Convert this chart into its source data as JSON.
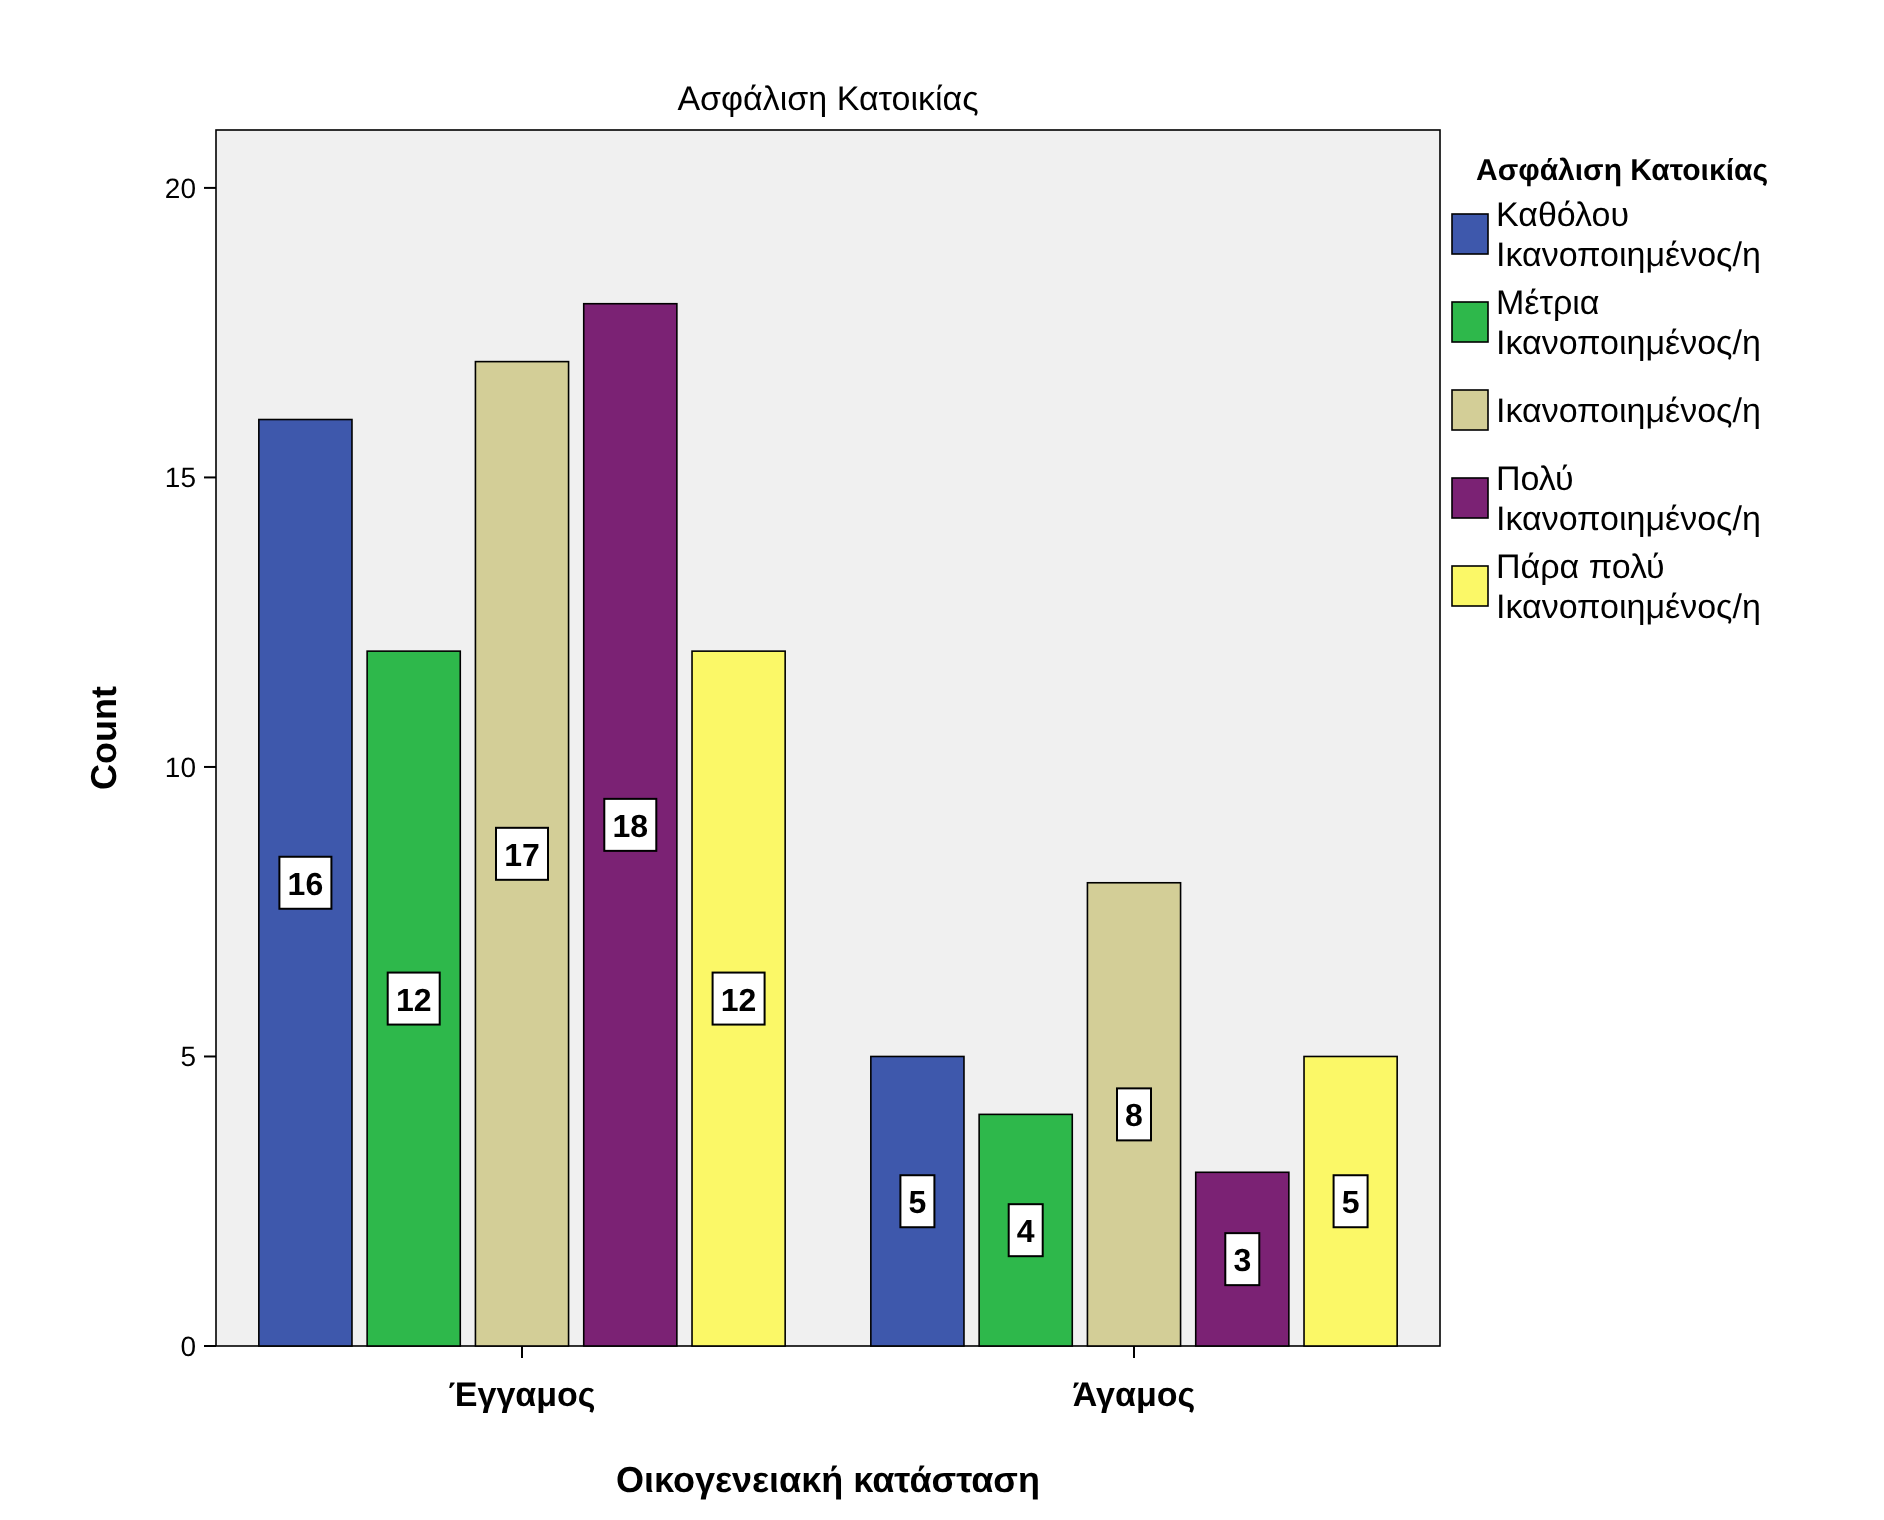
{
  "chart_data": {
    "type": "bar",
    "title": "Ασφάλιση Κατοικίας",
    "xlabel": "Οικογενειακή κατάσταση",
    "ylabel": "Count",
    "legend_title": "Ασφάλιση Κατοικίας",
    "legend": "right",
    "categories": [
      "Έγγαμος",
      "Άγαμος"
    ],
    "series": [
      {
        "name": "Καθόλου Ικανοποιημένος/η",
        "color": "#3e58ac",
        "values": [
          16,
          5
        ]
      },
      {
        "name": "Μέτρια Ικανοποιημένος/η",
        "color": "#2eb84b",
        "values": [
          12,
          4
        ]
      },
      {
        "name": "Ικανοποιημένος/η",
        "color": "#d3ce97",
        "values": [
          17,
          8
        ]
      },
      {
        "name": "Πολύ Ικανοποιημένος/η",
        "color": "#7b2274",
        "values": [
          18,
          3
        ]
      },
      {
        "name": "Πάρα πολύ Ικανοποιημένος/η",
        "color": "#fbf867",
        "values": [
          12,
          5
        ]
      }
    ],
    "ylim": [
      0,
      21
    ],
    "yticks": [
      0,
      5,
      10,
      15,
      20
    ],
    "grid": false,
    "data_labels": true
  }
}
